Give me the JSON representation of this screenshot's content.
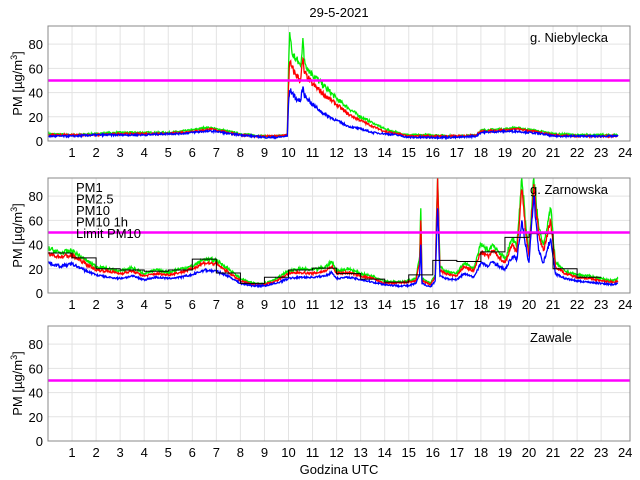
{
  "chart_data": {
    "type": "line",
    "title": "29-5-2021",
    "xlabel": "Godzina UTC",
    "ylabel": "PM [µg/m3]",
    "xlim": [
      0,
      24.2
    ],
    "ylim": [
      0,
      95
    ],
    "xticks": [
      1,
      2,
      3,
      4,
      5,
      6,
      7,
      8,
      9,
      10,
      11,
      12,
      13,
      14,
      15,
      16,
      17,
      18,
      19,
      20,
      21,
      22,
      23,
      24
    ],
    "yticks": [
      0,
      20,
      40,
      60,
      80
    ],
    "grid": true,
    "limit_pm10": 50,
    "colors": {
      "pm1": "#0000ff",
      "pm25": "#ff0000",
      "pm10": "#00ee00",
      "pm10_1h": "#000000",
      "limit": "#ff00ff"
    },
    "legend": {
      "placement": "top-left of second panel",
      "entries": [
        "PM1",
        "PM2.5",
        "PM10",
        "PM10 1h",
        "Limit PM10"
      ]
    },
    "panels": [
      {
        "station": "g. Niebylecka",
        "x": [
          0,
          1,
          2,
          3,
          4,
          5,
          5.5,
          6,
          6.5,
          6.7,
          7,
          7.5,
          8,
          8.5,
          9,
          9.5,
          9.95,
          10.0,
          10.05,
          10.15,
          10.3,
          10.5,
          10.6,
          10.65,
          10.8,
          11,
          11.5,
          12,
          12.5,
          13,
          13.5,
          14,
          14.5,
          15,
          16,
          17,
          17.8,
          18,
          19,
          19.5,
          20.5,
          21,
          22,
          23,
          23.7
        ],
        "series": [
          {
            "name": "PM10",
            "key": "pm10",
            "values": [
              6,
              5,
              6,
              7,
              7,
              7,
              8,
              9,
              11,
              11,
              10,
              8,
              6,
              5,
              4,
              4,
              5,
              60,
              90,
              72,
              68,
              62,
              85,
              67,
              60,
              55,
              45,
              35,
              27,
              20,
              15,
              10,
              7,
              5,
              5,
              4,
              5,
              9,
              10,
              11,
              8,
              6,
              5,
              5,
              5
            ]
          },
          {
            "name": "PM2.5",
            "key": "pm25",
            "values": [
              5,
              5,
              5,
              6,
              6,
              6,
              7,
              8,
              9,
              10,
              9,
              7,
              5,
              4,
              4,
              4,
              5,
              45,
              65,
              60,
              55,
              50,
              68,
              57,
              52,
              47,
              38,
              30,
              22,
              17,
              12,
              8,
              6,
              4,
              4,
              4,
              5,
              8,
              9,
              10,
              7,
              5,
              4,
              4,
              4
            ]
          },
          {
            "name": "PM1",
            "key": "pm1",
            "values": [
              4,
              4,
              5,
              5,
              5,
              6,
              6,
              7,
              8,
              8,
              8,
              6,
              5,
              4,
              3,
              3,
              4,
              30,
              42,
              40,
              35,
              33,
              45,
              38,
              35,
              30,
              22,
              17,
              12,
              10,
              7,
              6,
              5,
              3,
              3,
              3,
              4,
              7,
              8,
              8,
              6,
              4,
              4,
              4,
              4
            ]
          }
        ],
        "pm10_1h": []
      },
      {
        "station": "g. Zarnowska",
        "x": [
          0,
          0.5,
          1,
          1.5,
          2,
          2.5,
          3,
          3.5,
          4,
          4.5,
          5,
          5.5,
          6,
          6.5,
          7,
          7.5,
          8,
          8.5,
          9,
          9.5,
          10,
          10.5,
          11,
          11.5,
          11.8,
          12,
          12.5,
          13,
          13.5,
          14,
          14.5,
          15,
          15.3,
          15.45,
          15.5,
          15.55,
          15.9,
          16.1,
          16.2,
          16.3,
          16.5,
          17,
          17.3,
          17.7,
          18,
          18.3,
          18.5,
          19,
          19.3,
          19.5,
          19.7,
          19.9,
          20,
          20.2,
          20.4,
          20.6,
          20.9,
          21.1,
          21.5,
          22,
          22.5,
          23,
          23.5,
          23.7
        ],
        "series": [
          {
            "name": "PM10",
            "key": "pm10",
            "values": [
              37,
              33,
              35,
              28,
              22,
              20,
              18,
              21,
              16,
              19,
              17,
              20,
              22,
              28,
              27,
              20,
              12,
              8,
              8,
              12,
              18,
              20,
              19,
              21,
              26,
              18,
              20,
              16,
              14,
              10,
              9,
              10,
              12,
              30,
              70,
              12,
              8,
              15,
              95,
              22,
              18,
              16,
              25,
              20,
              40,
              35,
              40,
              28,
              45,
              40,
              95,
              50,
              35,
              95,
              55,
              40,
              70,
              25,
              18,
              15,
              14,
              12,
              10,
              12
            ]
          },
          {
            "name": "PM2.5",
            "key": "pm25",
            "values": [
              32,
              30,
              31,
              25,
              19,
              18,
              16,
              18,
              14,
              16,
              15,
              17,
              20,
              25,
              24,
              17,
              10,
              7,
              7,
              10,
              16,
              17,
              16,
              18,
              22,
              16,
              17,
              14,
              12,
              8,
              8,
              9,
              10,
              25,
              60,
              10,
              7,
              13,
              95,
              19,
              16,
              14,
              22,
              18,
              34,
              30,
              35,
              25,
              40,
              35,
              85,
              45,
              30,
              90,
              48,
              35,
              60,
              22,
              16,
              13,
              12,
              10,
              9,
              10
            ]
          },
          {
            "name": "PM1",
            "key": "pm1",
            "values": [
              25,
              22,
              24,
              19,
              15,
              13,
              12,
              14,
              11,
              13,
              12,
              13,
              15,
              19,
              18,
              14,
              8,
              6,
              6,
              8,
              12,
              13,
              13,
              14,
              17,
              12,
              13,
              11,
              9,
              7,
              6,
              6,
              8,
              15,
              40,
              8,
              5,
              10,
              70,
              14,
              12,
              11,
              16,
              13,
              25,
              22,
              26,
              19,
              30,
              28,
              60,
              35,
              25,
              80,
              35,
              25,
              45,
              16,
              12,
              10,
              9,
              8,
              7,
              8
            ]
          }
        ],
        "pm10_1h": [
          33,
          29,
          20,
          19,
          18,
          19,
          28,
          16.5,
          8,
          13,
          19,
          20.5,
          16,
          11.5,
          9,
          15,
          27,
          26,
          34,
          46,
          49,
          20,
          13
        ]
      },
      {
        "station": "Zawale",
        "x": [],
        "series": [],
        "pm10_1h": []
      }
    ]
  }
}
